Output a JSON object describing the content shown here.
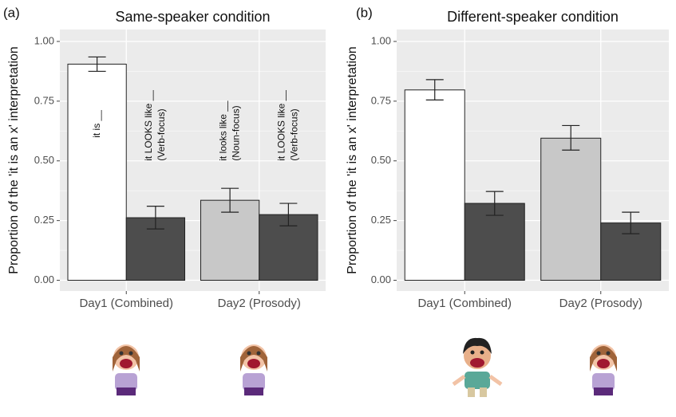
{
  "chart_data": [
    {
      "type": "bar",
      "panel_label": "(a)",
      "title": "Same-speaker condition",
      "ylabel": "Proportion of the 'it is an x' interpretation",
      "categories": [
        "Day1 (Combined)",
        "Day2 (Prosody)"
      ],
      "groups": [
        [
          {
            "value": 0.905,
            "ci": [
              0.875,
              0.935
            ],
            "color": "#ffffff",
            "label": [
              "it is __"
            ]
          },
          {
            "value": 0.262,
            "ci": [
              0.215,
              0.31
            ],
            "color": "#4d4d4d",
            "label": [
              "it LOOKS like __",
              "(Verb-focus)"
            ]
          }
        ],
        [
          {
            "value": 0.335,
            "ci": [
              0.285,
              0.385
            ],
            "color": "#c8c8c8",
            "label": [
              "it looks like __",
              "(Noun-focus)"
            ]
          },
          {
            "value": 0.275,
            "ci": [
              0.228,
              0.322
            ],
            "color": "#4d4d4d",
            "label": [
              "it LOOKS like __",
              "(Verb-focus)"
            ]
          }
        ]
      ],
      "ylim": [
        -0.045,
        1.05
      ],
      "yticks": [
        {
          "value": 0,
          "label": "0.00"
        },
        {
          "value": 0.25,
          "label": "0.25"
        },
        {
          "value": 0.5,
          "label": "0.50"
        },
        {
          "value": 0.75,
          "label": "0.75"
        },
        {
          "value": 1,
          "label": "1.00"
        }
      ],
      "grid": true
    },
    {
      "type": "bar",
      "panel_label": "(b)",
      "title": "Different-speaker condition",
      "ylabel": "Proportion of the 'it is an x' interpretation",
      "categories": [
        "Day1 (Combined)",
        "Day2 (Prosody)"
      ],
      "groups": [
        [
          {
            "value": 0.797,
            "ci": [
              0.755,
              0.84
            ],
            "color": "#ffffff"
          },
          {
            "value": 0.322,
            "ci": [
              0.272,
              0.372
            ],
            "color": "#4d4d4d"
          }
        ],
        [
          {
            "value": 0.595,
            "ci": [
              0.545,
              0.648
            ],
            "color": "#c8c8c8"
          },
          {
            "value": 0.24,
            "ci": [
              0.195,
              0.285
            ],
            "color": "#4d4d4d"
          }
        ]
      ],
      "ylim": [
        -0.045,
        1.05
      ],
      "yticks": [
        {
          "value": 0,
          "label": "0.00"
        },
        {
          "value": 0.25,
          "label": "0.25"
        },
        {
          "value": 0.5,
          "label": "0.50"
        },
        {
          "value": 0.75,
          "label": "0.75"
        },
        {
          "value": 1,
          "label": "1.00"
        }
      ],
      "grid": true
    }
  ]
}
